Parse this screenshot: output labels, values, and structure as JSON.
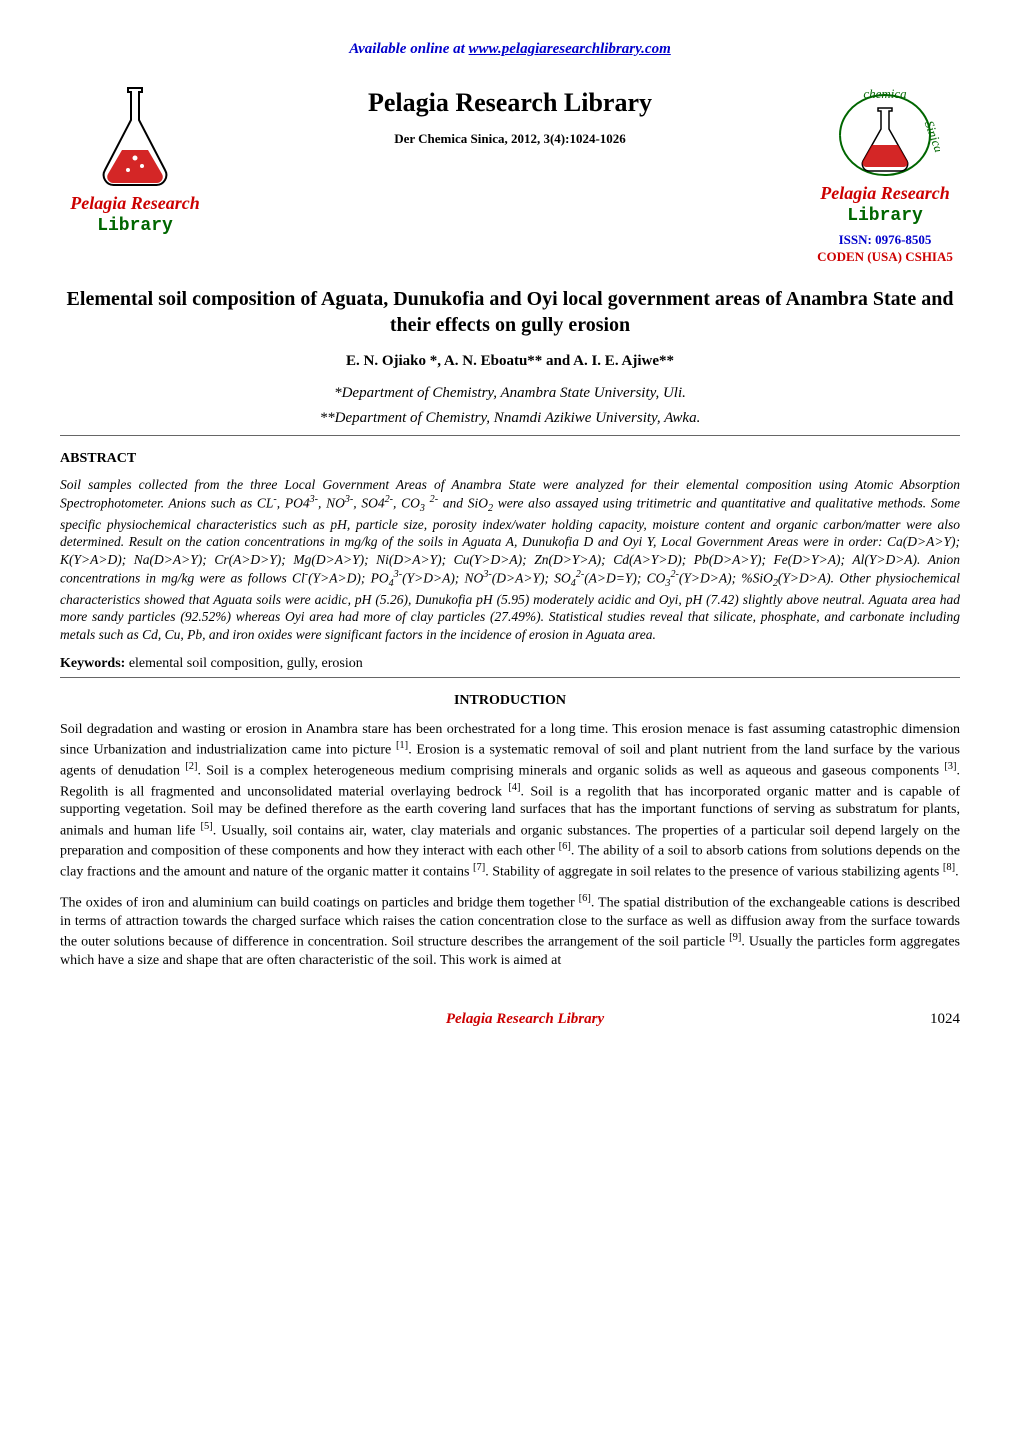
{
  "colors": {
    "link_blue": "#0000cc",
    "brand_red": "#cc0000",
    "brand_green": "#006600",
    "text_black": "#000000",
    "background": "#ffffff",
    "rule_gray": "#666666"
  },
  "typography": {
    "body_family": "Times New Roman",
    "body_size_pt": 11,
    "journal_title_size_pt": 20,
    "article_title_size_pt": 15,
    "line_height": 1.3
  },
  "top_link": {
    "prefix": "Available online at ",
    "url_text": "www.pelagiaresearchlibrary.com"
  },
  "header": {
    "journal_title": "Pelagia Research Library",
    "journal_subtitle": "Der Chemica Sinica, 2012, 3(4):1024-1026",
    "issn": "ISSN: 0976-8505",
    "coden": "CODEN (USA) CSHIA5",
    "logo_main": "Pelagia Research",
    "logo_sub": "Library"
  },
  "article": {
    "title": "Elemental soil composition of Aguata, Dunukofia and Oyi local government areas of Anambra State and their effects on gully erosion",
    "authors": "E. N. Ojiako *, A. N. Eboatu** and A. I. E. Ajiwe**",
    "affiliation_1": "*Department of Chemistry, Anambra State University, Uli.",
    "affiliation_2": "**Department of Chemistry, Nnamdi Azikiwe University, Awka."
  },
  "abstract": {
    "heading": "ABSTRACT",
    "body_html": "Soil samples collected from the three Local Government Areas of Anambra State were analyzed for their elemental composition using Atomic Absorption Spectrophotometer. Anions such as CL<sup>-</sup>, PO4<sup>3-</sup>, NO<sup>3-</sup>, SO4<sup>2-</sup>, CO<sub>3</sub> <sup>2-</sup> and SiO<sub>2</sub> were also assayed using tritimetric and quantitative and qualitative methods. Some specific physiochemical characteristics such as pH, particle size, porosity index/water holding capacity, moisture content and organic carbon/matter were also determined. Result on the cation concentrations in mg/kg of the soils in Aguata A, Dunukofia D and Oyi Y, Local Government  Areas were in order: Ca(D&gt;A&gt;Y); K(Y&gt;A&gt;D); Na(D&gt;A&gt;Y); Cr(A&gt;D&gt;Y); Mg(D&gt;A&gt;Y); Ni(D&gt;A&gt;Y); Cu(Y&gt;D&gt;A); Zn(D&gt;Y&gt;A); Cd(A&gt;Y&gt;D); Pb(D&gt;A&gt;Y); Fe(D&gt;Y&gt;A); Al(Y&gt;D&gt;A). Anion concentrations in mg/kg were as follows Cl<sup>-</sup>(Y&gt;A&gt;D); PO<sub>4</sub><sup>3-</sup>(Y&gt;D&gt;A); NO<sup>3-</sup>(D&gt;A&gt;Y); SO<sub>4</sub><sup>2-</sup>(A&gt;D=Y); CO<sub>3</sub><sup>2-</sup>(Y&gt;D&gt;A); %SiO<sub>2</sub>(Y&gt;D&gt;A). Other physiochemical characteristics showed that Aguata soils were acidic, pH (5.26), Dunukofia pH (5.95) moderately acidic and Oyi, pH (7.42) slightly above neutral. Aguata area had more sandy particles (92.52%) whereas Oyi area had more of clay particles (27.49%). Statistical studies reveal that silicate, phosphate, and carbonate including metals such as Cd, Cu, Pb, and iron oxides were significant factors in the incidence of erosion in Aguata area."
  },
  "keywords": {
    "label": "Keywords:",
    "text": " elemental soil composition, gully, erosion"
  },
  "introduction": {
    "heading": "INTRODUCTION",
    "para1_html": "Soil degradation and wasting or erosion in Anambra stare has been orchestrated for a long time. This erosion menace is fast assuming catastrophic dimension since Urbanization and industrialization came into picture <sup>[1]</sup>. Erosion is a systematic removal of soil and plant nutrient from the land surface by the various agents of denudation <sup>[2]</sup>. Soil is a complex heterogeneous medium comprising minerals and organic solids as well as aqueous and gaseous components <sup>[3]</sup>. Regolith is all fragmented and unconsolidated material overlaying bedrock <sup>[4]</sup>. Soil is a regolith that has incorporated organic matter and is capable of supporting vegetation. Soil may be defined therefore as the earth covering land surfaces that has the important functions of serving as substratum for plants, animals and human life <sup>[5]</sup>. Usually, soil contains air, water, clay materials and organic substances. The properties of a particular soil depend largely on the preparation and composition of these components and how they interact with each other <sup>[6]</sup>. The ability of a soil to absorb cations from solutions depends on the clay fractions and the amount and nature of the organic matter it contains <sup>[7]</sup>. Stability of aggregate in soil relates to the presence of various stabilizing agents <sup>[8]</sup>.",
    "para2_html": "The oxides of iron and aluminium can build coatings on particles and bridge them together <sup>[6]</sup>. The spatial distribution of the exchangeable cations is described in terms of attraction towards the charged surface which raises the cation concentration close to the surface as well as diffusion away from the surface towards the outer solutions because of difference in concentration. Soil structure describes the arrangement of the soil particle <sup>[9]</sup>. Usually the particles form aggregates which have a size and shape that are often characteristic of the soil. This work is aimed at"
  },
  "footer": {
    "center_text": "Pelagia Research Library",
    "page_number": "1024"
  }
}
